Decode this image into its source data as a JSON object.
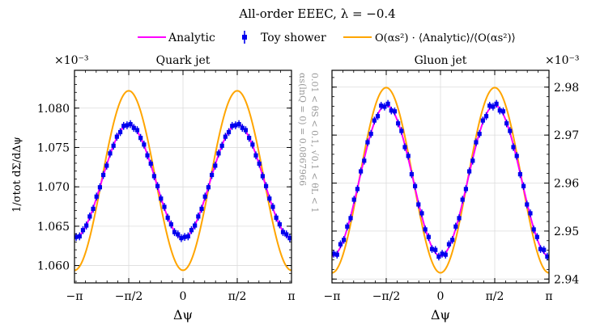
{
  "figure": {
    "title": "All-order EEEC, λ = −0.4",
    "side_note_line1": "αs(lnQ = 0) = 0.0867966",
    "side_note_line2": "0.01 < θS < 0.1, √0.1 < θL < 1",
    "legend": [
      {
        "label": "Analytic",
        "color": "#ff00ff",
        "kind": "line"
      },
      {
        "label": "Toy shower",
        "color": "#0000ee",
        "kind": "errorbar"
      },
      {
        "label": "O(αs²) · ⟨Analytic⟩/⟨O(αs²)⟩",
        "color": "#ffa500",
        "kind": "line"
      }
    ],
    "ylabel": "1/σtot dΣ/dΔψ"
  },
  "colors": {
    "analytic": "#ff00ff",
    "shower": "#0000ee",
    "fixed_order": "#ffa500"
  },
  "chart_data": [
    {
      "type": "line",
      "title": "Quark jet",
      "xlabel": "Δψ",
      "ylabel": "1/σtot dΣ/dΔψ",
      "y_scale_label": "×10⁻³",
      "xlim": [
        -3.14159,
        3.14159
      ],
      "ylim": [
        1.0578,
        1.0848
      ],
      "x_ticks": [
        {
          "value": -3.14159,
          "label": "−π"
        },
        {
          "value": -1.5708,
          "label": "−π/2"
        },
        {
          "value": 0,
          "label": "0"
        },
        {
          "value": 1.5708,
          "label": "π/2"
        },
        {
          "value": 3.14159,
          "label": "π"
        }
      ],
      "y_ticks": [
        {
          "value": 1.06,
          "label": "1.060"
        },
        {
          "value": 1.065,
          "label": "1.065"
        },
        {
          "value": 1.07,
          "label": "1.070"
        },
        {
          "value": 1.075,
          "label": "1.075"
        },
        {
          "value": 1.08,
          "label": "1.080"
        }
      ],
      "y_axis_side": "left",
      "series": [
        {
          "name": "Analytic",
          "model": "cosine",
          "mean": 1.0707,
          "amplitude": 0.0072
        },
        {
          "name": "O(αs²) · ⟨Analytic⟩/⟨O(αs²)⟩",
          "model": "cosine",
          "mean": 1.0708,
          "amplitude": 0.0114
        },
        {
          "name": "Toy shower",
          "points": 64,
          "error": 0.0005,
          "jitter": [
            0.0001,
            -0.0001,
            0.00015,
            -5e-05
          ]
        }
      ]
    },
    {
      "type": "line",
      "title": "Gluon jet",
      "xlabel": "Δψ",
      "ylabel": "",
      "y_scale_label": "×10⁻³",
      "xlim": [
        -3.14159,
        3.14159
      ],
      "ylim": [
        2.9392,
        2.9835
      ],
      "x_ticks": [
        {
          "value": -3.14159,
          "label": "−π"
        },
        {
          "value": -1.5708,
          "label": "−π/2"
        },
        {
          "value": 0,
          "label": "0"
        },
        {
          "value": 1.5708,
          "label": "π/2"
        },
        {
          "value": 3.14159,
          "label": "π"
        }
      ],
      "y_ticks": [
        {
          "value": 2.94,
          "label": "2.94"
        },
        {
          "value": 2.95,
          "label": "2.95"
        },
        {
          "value": 2.96,
          "label": "2.96"
        },
        {
          "value": 2.97,
          "label": "2.97"
        },
        {
          "value": 2.98,
          "label": "2.98"
        }
      ],
      "y_axis_side": "right",
      "series": [
        {
          "name": "Analytic",
          "model": "cosine",
          "mean": 2.9605,
          "amplitude": 0.0157
        },
        {
          "name": "O(αs²) · ⟨Analytic⟩/⟨O(αs²)⟩",
          "model": "cosine",
          "mean": 2.9606,
          "amplitude": 0.0193
        },
        {
          "name": "Toy shower",
          "points": 64,
          "error": 0.0008,
          "jitter": [
            0.0004,
            -0.0004,
            0.0006,
            -0.0002
          ]
        }
      ]
    }
  ]
}
